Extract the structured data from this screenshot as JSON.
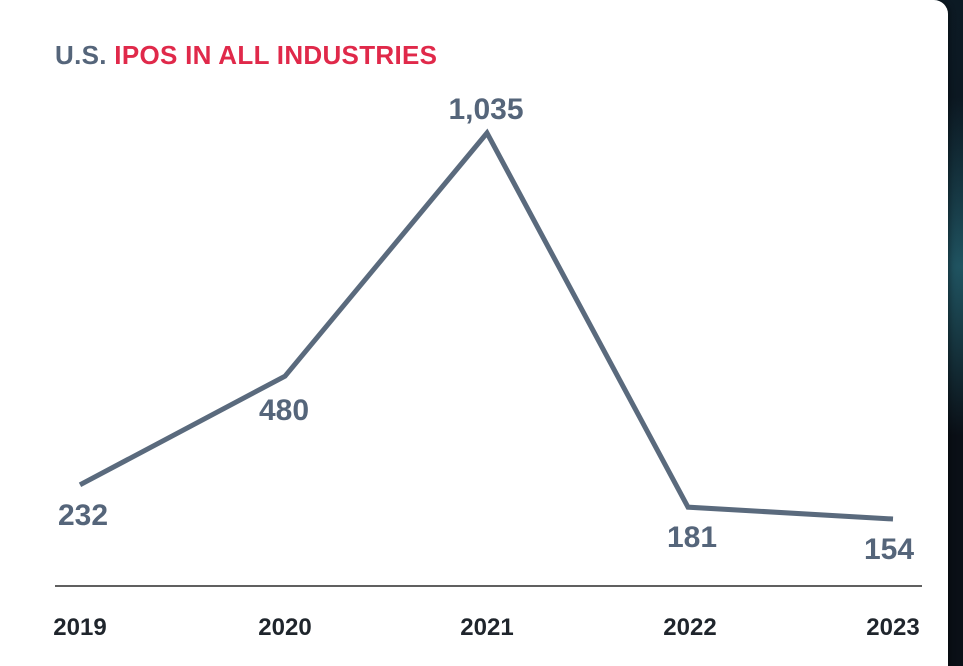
{
  "title": {
    "part1": "U.S.",
    "part2": "IPOS IN ALL INDUSTRIES"
  },
  "colors": {
    "line": "#5a6a7d",
    "title_gray": "#55657a",
    "title_red": "#e0294a",
    "axis": "#2b2b2b"
  },
  "chart_data": {
    "type": "line",
    "title": "U.S. IPOS IN ALL INDUSTRIES",
    "categories": [
      "2019",
      "2020",
      "2021",
      "2022",
      "2023"
    ],
    "values": [
      232,
      480,
      1035,
      181,
      154
    ],
    "value_labels": [
      "232",
      "480",
      "1,035",
      "181",
      "154"
    ],
    "ylim": [
      154,
      1035
    ],
    "grid": false,
    "legend": "none"
  }
}
